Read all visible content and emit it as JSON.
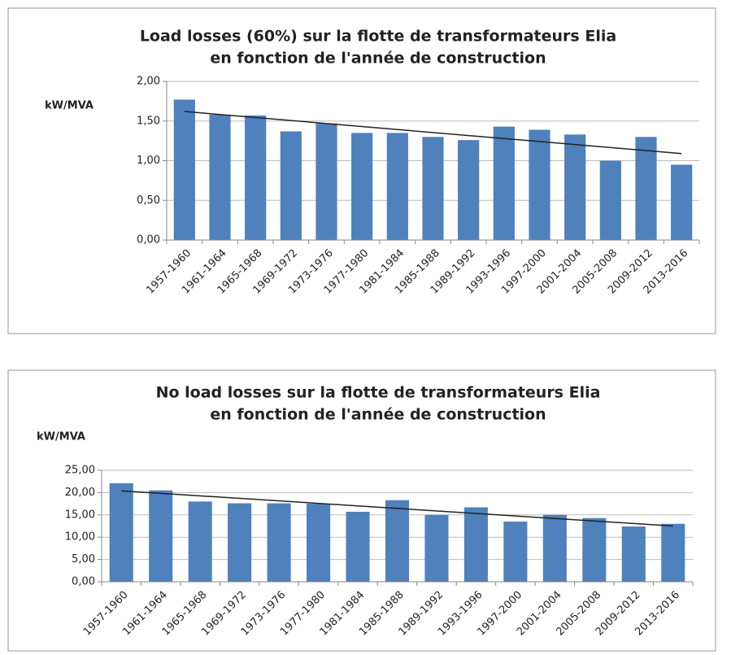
{
  "chart_data": [
    {
      "type": "bar",
      "title": [
        "Load losses (60%) sur la flotte de transformateurs Elia",
        "en fonction de l'année de construction"
      ],
      "y_label": "kW/MVA",
      "categories": [
        "1957-1960",
        "1961-1964",
        "1965-1968",
        "1969-1972",
        "1973-1976",
        "1977-1980",
        "1981-1984",
        "1985-1988",
        "1989-1992",
        "1993-1996",
        "1997-2000",
        "2001-2004",
        "2005-2008",
        "2009-2012",
        "2013-2016"
      ],
      "values": [
        1.77,
        1.58,
        1.57,
        1.37,
        1.47,
        1.35,
        1.35,
        1.3,
        1.26,
        1.43,
        1.39,
        1.33,
        1.0,
        1.3,
        0.95
      ],
      "color": "#4f81bd",
      "trendline": [
        1.62,
        1.09
      ],
      "ylim": [
        0,
        2
      ],
      "yticks": [
        {
          "value": 0,
          "label": "0,00"
        },
        {
          "value": 0.5,
          "label": "0,50"
        },
        {
          "value": 1,
          "label": "1,00"
        },
        {
          "value": 1.5,
          "label": "1,50"
        },
        {
          "value": 2,
          "label": "2,00"
        }
      ],
      "grid": true
    },
    {
      "type": "bar",
      "title": [
        "No load losses sur la flotte de transformateurs Elia",
        "en fonction de l'année de construction"
      ],
      "y_label": "kW/MVA",
      "categories": [
        "1957-1960",
        "1961-1964",
        "1965-1968",
        "1969-1972",
        "1973-1976",
        "1977-1980",
        "1981-1984",
        "1985-1988",
        "1989-1992",
        "1993-1996",
        "1997-2000",
        "2001-2004",
        "2005-2008",
        "2009-2012",
        "2013-2016"
      ],
      "values": [
        22.1,
        20.5,
        18.0,
        17.6,
        17.6,
        17.5,
        15.7,
        18.3,
        15.0,
        16.7,
        13.5,
        15.0,
        14.3,
        12.4,
        13.0
      ],
      "color": "#4f81bd",
      "trendline": [
        20.4,
        12.5
      ],
      "ylim": [
        0,
        25
      ],
      "yticks": [
        {
          "value": 0,
          "label": "0,00"
        },
        {
          "value": 5,
          "label": "5,00"
        },
        {
          "value": 10,
          "label": "10,00"
        },
        {
          "value": 15,
          "label": "15,00"
        },
        {
          "value": 20,
          "label": "20,00"
        },
        {
          "value": 25,
          "label": "25,00"
        }
      ],
      "grid": true
    }
  ]
}
